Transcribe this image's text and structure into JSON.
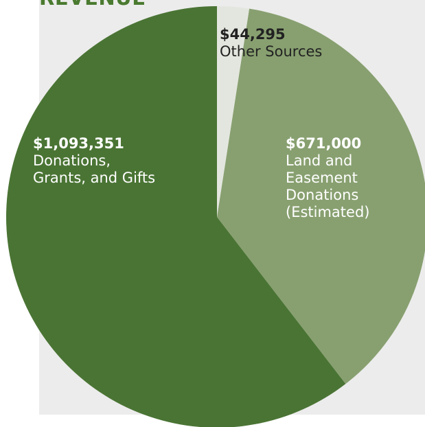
{
  "title": "REVENUE",
  "colors": {
    "background_panel": "#ececec",
    "title": "#4a7a2f"
  },
  "chart_data": {
    "type": "pie",
    "title": "REVENUE",
    "start_angle_deg": 0,
    "direction": "counterclockwise",
    "slices": [
      {
        "amount": "$1,093,351",
        "description": "Donations,\nGrants, and Gifts",
        "value": 1093351,
        "color": "#4a7434",
        "label_color": "#ffffff"
      },
      {
        "amount": "$671,000",
        "description": "Land and\nEasement\nDonations\n(Estimated)",
        "value": 671000,
        "color": "#88a070",
        "label_color": "#ffffff"
      },
      {
        "amount": "$44,295",
        "description": "Other Sources",
        "value": 44295,
        "color": "#e3e6de",
        "label_color": "#222222"
      }
    ]
  }
}
